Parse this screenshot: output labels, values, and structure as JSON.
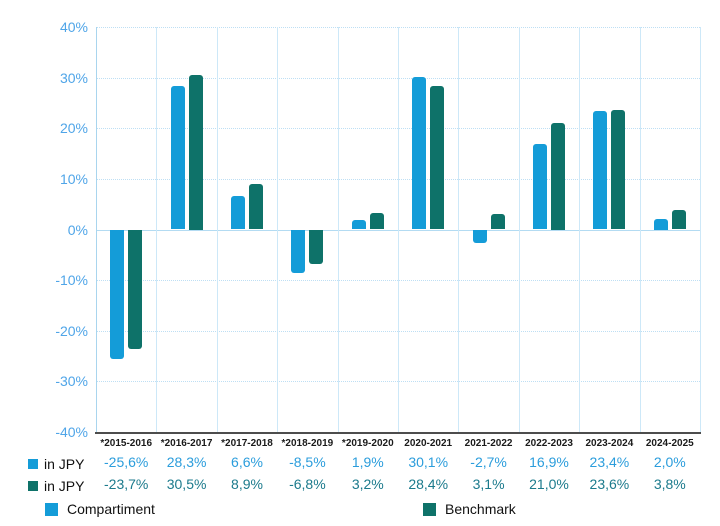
{
  "chart_data": {
    "type": "bar",
    "categories": [
      "*2015-2016",
      "*2016-2017",
      "*2017-2018",
      "*2018-2019",
      "*2019-2020",
      "2020-2021",
      "2021-2022",
      "2022-2023",
      "2023-2024",
      "2024-2025"
    ],
    "series": [
      {
        "name": "Compartiment",
        "unit_label": "in JPY",
        "color": "#149CD8",
        "values": [
          -25.6,
          28.3,
          6.6,
          -8.5,
          1.9,
          30.1,
          -2.7,
          16.9,
          23.4,
          2.0
        ],
        "display_values": [
          "-25,6%",
          "28,3%",
          "6,6%",
          "-8,5%",
          "1,9%",
          "30,1%",
          "-2,7%",
          "16,9%",
          "23,4%",
          "2,0%"
        ]
      },
      {
        "name": "Benchmark",
        "unit_label": "in JPY",
        "color": "#0E7269",
        "values": [
          -23.7,
          30.5,
          8.9,
          -6.8,
          3.2,
          28.4,
          3.1,
          21.0,
          23.6,
          3.8
        ],
        "display_values": [
          "-23,7%",
          "30,5%",
          "8,9%",
          "-6,8%",
          "3,2%",
          "28,4%",
          "3,1%",
          "21,0%",
          "23,6%",
          "3,8%"
        ]
      }
    ],
    "y_axis": {
      "min": -40,
      "max": 40,
      "step": 10,
      "tick_labels": [
        "40%",
        "30%",
        "20%",
        "10%",
        "0%",
        "-10%",
        "-20%",
        "-30%",
        "-40%"
      ]
    },
    "grid": true,
    "legend_position": "bottom"
  },
  "colors": {
    "compartiment": "#149CD8",
    "benchmark": "#0E7269",
    "axis_label_text": "#4FA5E8",
    "compartiment_value_text": "#2B9DDC",
    "benchmark_value_text": "#1B7A8C",
    "gridline": "#BEDFF4",
    "axis_line": "#4D4D4D",
    "category_label_text": "#1A1A1A"
  }
}
